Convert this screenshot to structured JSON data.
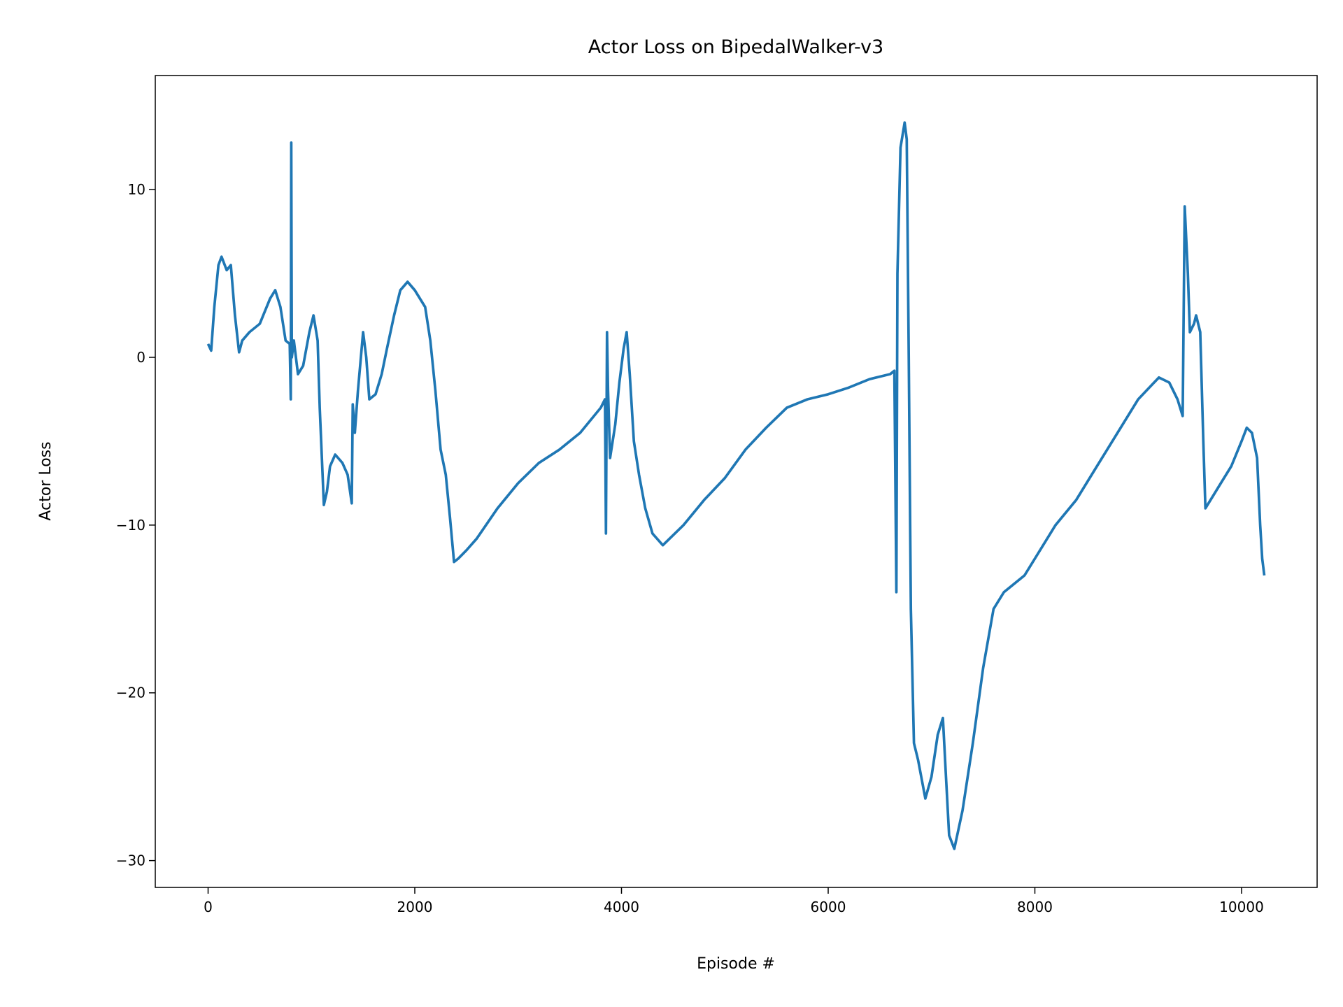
{
  "chart_data": {
    "type": "line",
    "title": "Actor Loss on BipedalWalker-v3",
    "xlabel": "Episode #",
    "ylabel": "Actor Loss",
    "x": [
      0,
      30,
      60,
      100,
      130,
      180,
      220,
      260,
      300,
      330,
      400,
      500,
      600,
      650,
      700,
      750,
      790,
      800,
      805,
      810,
      830,
      870,
      920,
      980,
      1020,
      1060,
      1080,
      1120,
      1150,
      1180,
      1230,
      1300,
      1350,
      1390,
      1400,
      1420,
      1450,
      1500,
      1530,
      1560,
      1620,
      1680,
      1730,
      1800,
      1860,
      1930,
      2000,
      2100,
      2150,
      2200,
      2250,
      2300,
      2340,
      2380,
      2420,
      2500,
      2600,
      2800,
      3000,
      3200,
      3400,
      3600,
      3800,
      3840,
      3850,
      3860,
      3870,
      3890,
      3940,
      3980,
      4020,
      4050,
      4080,
      4120,
      4170,
      4230,
      4300,
      4400,
      4600,
      4800,
      5000,
      5200,
      5400,
      5600,
      5800,
      6000,
      6200,
      6400,
      6600,
      6640,
      6660,
      6670,
      6700,
      6740,
      6760,
      6780,
      6800,
      6830,
      6870,
      6940,
      7000,
      7060,
      7110,
      7140,
      7170,
      7220,
      7300,
      7400,
      7500,
      7600,
      7700,
      7900,
      8000,
      8200,
      8400,
      8600,
      8800,
      9000,
      9200,
      9300,
      9380,
      9430,
      9450,
      9480,
      9500,
      9540,
      9560,
      9600,
      9630,
      9650,
      9700,
      9800,
      9900,
      10000,
      10050,
      10100,
      10150,
      10180,
      10200,
      10220
    ],
    "series": [
      {
        "color": "#1f77b4",
        "values": [
          0.8,
          0.4,
          3,
          5.5,
          6,
          5.2,
          5.5,
          2.5,
          0.3,
          1,
          1.5,
          2,
          3.5,
          4,
          3,
          1,
          0.8,
          -2.5,
          12.8,
          0,
          1,
          -1,
          -0.5,
          1.5,
          2.5,
          1,
          -3,
          -8.8,
          -8,
          -6.5,
          -5.8,
          -6.3,
          -7,
          -8.7,
          -2.8,
          -4.5,
          -2,
          1.5,
          0,
          -2.5,
          -2.2,
          -1,
          0.5,
          2.5,
          4,
          4.5,
          4,
          3,
          1,
          -2,
          -5.5,
          -7,
          -9.5,
          -12.2,
          -12,
          -11.5,
          -10.8,
          -9,
          -7.5,
          -6.3,
          -5.5,
          -4.5,
          -3,
          -2.5,
          -10.5,
          1.5,
          -2,
          -6,
          -4,
          -1.5,
          0.5,
          1.5,
          -1,
          -5,
          -7,
          -9,
          -10.5,
          -11.2,
          -10,
          -8.5,
          -7.2,
          -5.5,
          -4.2,
          -3,
          -2.5,
          -2.2,
          -1.8,
          -1.3,
          -1,
          -0.8,
          -14,
          5,
          12.5,
          14,
          13,
          0,
          -15,
          -23,
          -24,
          -26.3,
          -25,
          -22.5,
          -21.5,
          -25,
          -28.5,
          -29.3,
          -27,
          -23,
          -18.5,
          -15,
          -14,
          -13,
          -12,
          -10,
          -8.5,
          -6.5,
          -4.5,
          -2.5,
          -1.2,
          -1.5,
          -2.5,
          -3.5,
          9,
          5,
          1.5,
          2,
          2.5,
          1.5,
          -5,
          -9,
          -8.5,
          -7.5,
          -6.5,
          -5,
          -4.2,
          -4.5,
          -6,
          -10,
          -12,
          -13
        ]
      }
    ],
    "xlim": [
      -511,
      10731
    ],
    "ylim": [
      -31.6,
      16.8
    ],
    "xticks": [
      0,
      2000,
      4000,
      6000,
      8000,
      10000
    ],
    "yticks": [
      {
        "value": -30,
        "label": "−30"
      },
      {
        "value": -20,
        "label": "−20"
      },
      {
        "value": -10,
        "label": "−10"
      },
      0,
      10
    ]
  }
}
